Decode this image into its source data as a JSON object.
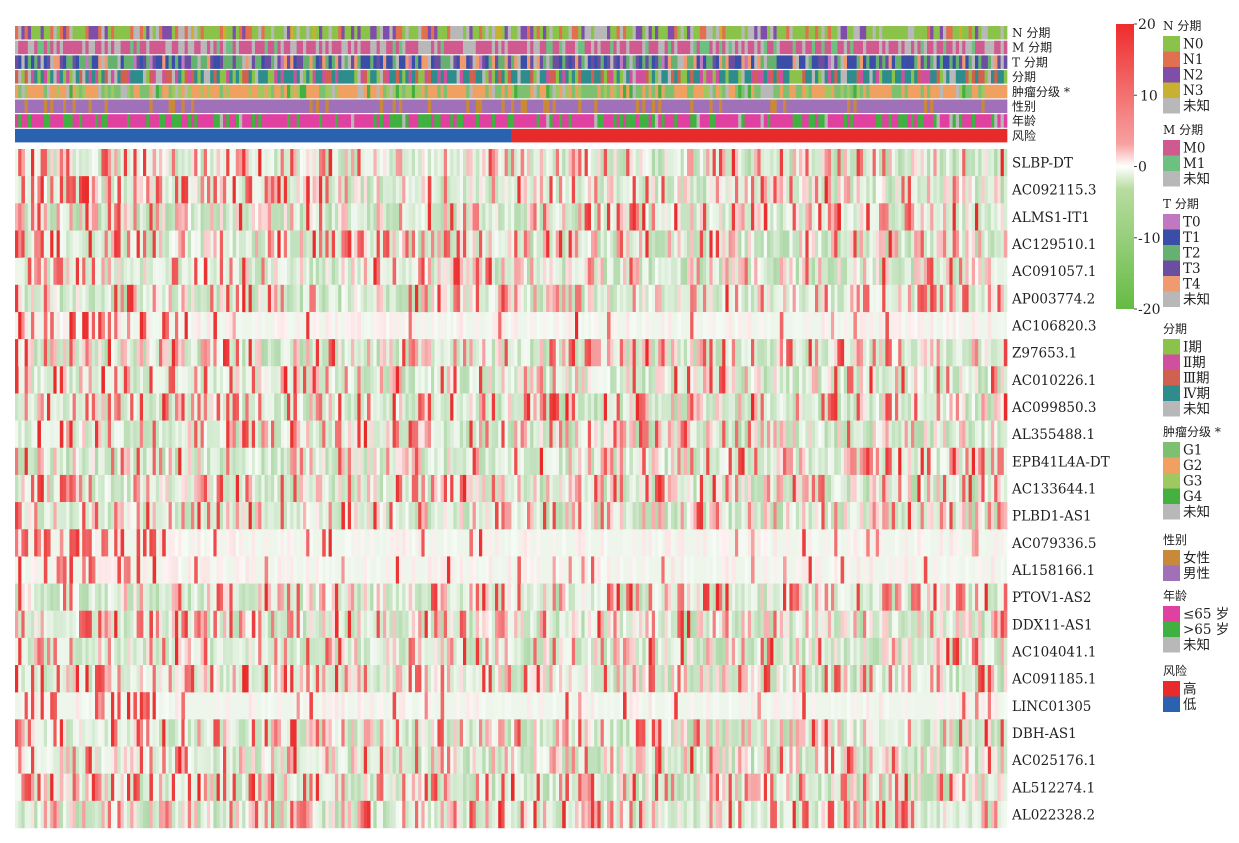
{
  "chart_data": {
    "type": "heatmap",
    "colorbar": {
      "ticks": [
        20,
        10,
        0,
        -10,
        -20
      ],
      "range": [
        -20,
        20
      ],
      "colors": {
        "high": "#ee2c2c",
        "mid": "#ffffff",
        "low": "#66bb44"
      }
    },
    "annotation_tracks": [
      {
        "key": "N",
        "label": "N 分期"
      },
      {
        "key": "M",
        "label": "M 分期"
      },
      {
        "key": "T",
        "label": "T 分期"
      },
      {
        "key": "stage",
        "label": "分期"
      },
      {
        "key": "grade",
        "label": "肿瘤分级 *"
      },
      {
        "key": "sex",
        "label": "性别"
      },
      {
        "key": "age",
        "label": "年龄"
      },
      {
        "key": "risk",
        "label": "风险"
      }
    ],
    "genes": [
      "SLBP-DT",
      "AC092115.3",
      "ALMS1-IT1",
      "AC129510.1",
      "AC091057.1",
      "AP003774.2",
      "AC106820.3",
      "Z97653.1",
      "AC010226.1",
      "AC099850.3",
      "AL355488.1",
      "EPB41L4A-DT",
      "AC133644.1",
      "PLBD1-AS1",
      "AC079336.5",
      "AL158166.1",
      "PTOV1-AS2",
      "DDX11-AS1",
      "AC104041.1",
      "AC091185.1",
      "LINC01305",
      "DBH-AS1",
      "AC025176.1",
      "AL512274.1",
      "AL022328.2"
    ],
    "legends": [
      {
        "key": "N",
        "title": "N 分期",
        "items": [
          {
            "label": "N0",
            "color": "#8bc34a"
          },
          {
            "label": "N1",
            "color": "#e07050"
          },
          {
            "label": "N2",
            "color": "#7e4ea8"
          },
          {
            "label": "N3",
            "color": "#c8b030"
          },
          {
            "label": "未知",
            "color": "#b8b8b8"
          }
        ]
      },
      {
        "key": "M",
        "title": "M 分期",
        "items": [
          {
            "label": "M0",
            "color": "#d05a90"
          },
          {
            "label": "M1",
            "color": "#6cc080"
          },
          {
            "label": "未知",
            "color": "#b8b8b8"
          }
        ]
      },
      {
        "key": "T",
        "title": "T 分期",
        "items": [
          {
            "label": "T0",
            "color": "#c078c0"
          },
          {
            "label": "T1",
            "color": "#3a4ea8"
          },
          {
            "label": "T2",
            "color": "#66b070"
          },
          {
            "label": "T3",
            "color": "#6a4ea0"
          },
          {
            "label": "T4",
            "color": "#f09a70"
          },
          {
            "label": "未知",
            "color": "#b8b8b8"
          }
        ]
      },
      {
        "key": "stage",
        "title": "分期",
        "items": [
          {
            "label": "Ⅰ期",
            "color": "#8bc34a"
          },
          {
            "label": "Ⅱ期",
            "color": "#d050a0"
          },
          {
            "label": "Ⅲ期",
            "color": "#d06050"
          },
          {
            "label": "Ⅳ期",
            "color": "#2e8c8c"
          },
          {
            "label": "未知",
            "color": "#b8b8b8"
          }
        ]
      },
      {
        "key": "grade",
        "title": "肿瘤分级 *",
        "items": [
          {
            "label": "G1",
            "color": "#7cc070"
          },
          {
            "label": "G2",
            "color": "#f0a060"
          },
          {
            "label": "G3",
            "color": "#a0c860"
          },
          {
            "label": "G4",
            "color": "#44b040"
          },
          {
            "label": "未知",
            "color": "#b8b8b8"
          }
        ]
      },
      {
        "key": "sex",
        "title": "性别",
        "items": [
          {
            "label": "女性",
            "color": "#c88a3a"
          },
          {
            "label": "男性",
            "color": "#a070b8"
          }
        ]
      },
      {
        "key": "age",
        "title": "年龄",
        "items": [
          {
            "label": "≤65 岁",
            "color": "#e040a0"
          },
          {
            "label": ">65 岁",
            "color": "#40b040"
          },
          {
            "label": "未知",
            "color": "#b8b8b8"
          }
        ]
      },
      {
        "key": "risk",
        "title": "风险",
        "items": [
          {
            "label": "高",
            "color": "#e82a2a"
          },
          {
            "label": "低",
            "color": "#2a62b0"
          }
        ]
      }
    ]
  }
}
